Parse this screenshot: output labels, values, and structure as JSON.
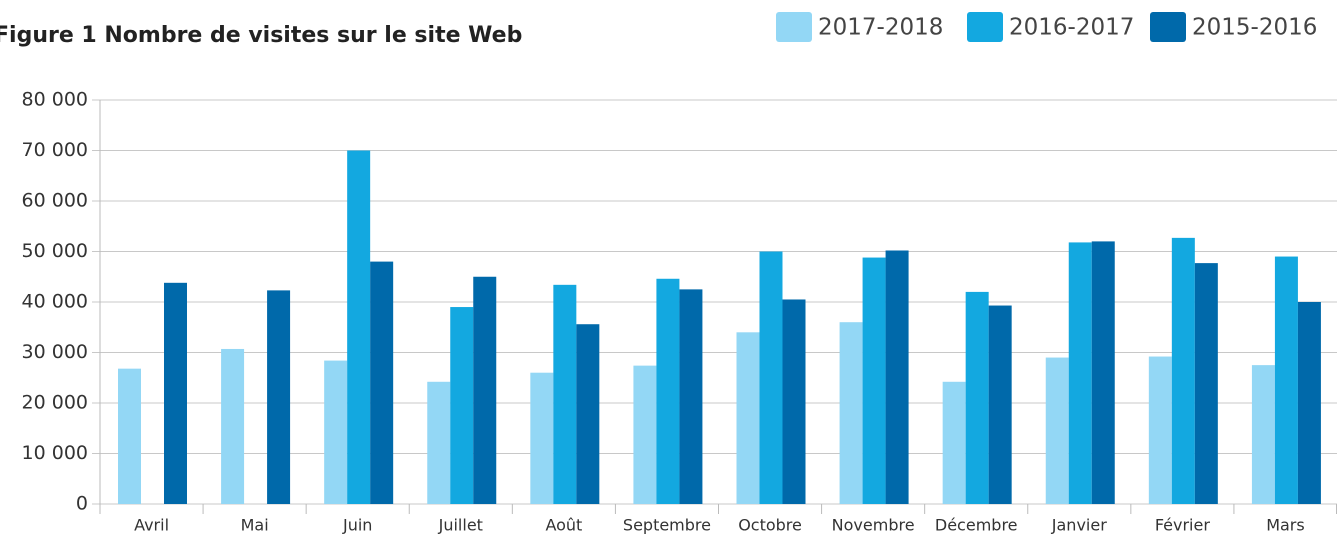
{
  "chart_data": {
    "type": "bar",
    "title": "Figure 1  Nombre de visites sur le site Web",
    "categories": [
      "Avril",
      "Mai",
      "Juin",
      "Juillet",
      "Août",
      "Septembre",
      "Octobre",
      "Novembre",
      "Décembre",
      "Janvier",
      "Février",
      "Mars"
    ],
    "series": [
      {
        "name": "2017-2018",
        "color": "#93d7f5",
        "values": [
          26800,
          30700,
          28400,
          24200,
          26000,
          27400,
          34000,
          36000,
          24200,
          29000,
          29200,
          27500
        ]
      },
      {
        "name": "2016-2017",
        "color": "#13a8e0",
        "values": [
          null,
          null,
          70000,
          39000,
          43400,
          44600,
          50000,
          48800,
          42000,
          51800,
          52700,
          49000
        ]
      },
      {
        "name": "2015-2016",
        "color": "#0069aa",
        "values": [
          43800,
          42300,
          48000,
          45000,
          35600,
          42500,
          40500,
          50200,
          39300,
          52000,
          47700,
          40000
        ]
      }
    ],
    "ylim": [
      0,
      80000
    ],
    "yticks": [
      0,
      {
        "value": 10000,
        "label": "10 000"
      },
      {
        "value": 20000,
        "label": "20 000"
      },
      {
        "value": 30000,
        "label": "30 000"
      },
      {
        "value": 40000,
        "label": "40 000"
      },
      {
        "value": 50000,
        "label": "50 000"
      },
      {
        "value": 60000,
        "label": "60 000"
      },
      {
        "value": 70000,
        "label": "70 000"
      },
      {
        "value": 80000,
        "label": "80 000"
      }
    ],
    "grid": true,
    "legend": "top-right"
  }
}
